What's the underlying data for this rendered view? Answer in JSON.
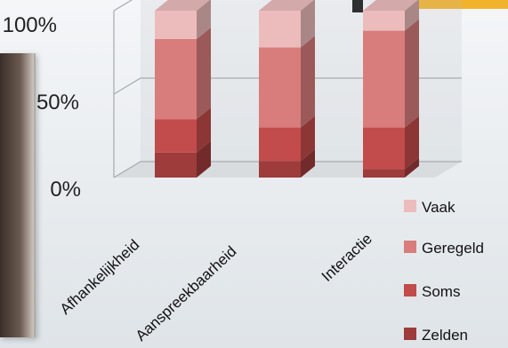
{
  "chart_data": {
    "type": "bar",
    "stacked": true,
    "percent": true,
    "three_d": true,
    "categories": [
      "Afhankelijkheid",
      "Aanspreekbaarheid",
      "Interactie"
    ],
    "series": [
      {
        "name": "Zelden",
        "values": [
          15,
          10,
          5
        ],
        "color": "#9e3b3b"
      },
      {
        "name": "Soms",
        "values": [
          20,
          20,
          25
        ],
        "color": "#c24b4b"
      },
      {
        "name": "Geregeld",
        "values": [
          48,
          48,
          58
        ],
        "color": "#d97c7c"
      },
      {
        "name": "Vaak",
        "values": [
          17,
          22,
          12
        ],
        "color": "#ecbcbc"
      }
    ],
    "y_ticks": [
      "0%",
      "50%",
      "100%"
    ],
    "ylim": [
      0,
      100
    ],
    "legend_position": "right",
    "legend_order": [
      "Vaak",
      "Geregeld",
      "Soms",
      "Zelden"
    ]
  },
  "colors": {
    "wall": "#b9bcc0",
    "grid": "#a7aaae",
    "photo_accent": "#f1b32b"
  }
}
